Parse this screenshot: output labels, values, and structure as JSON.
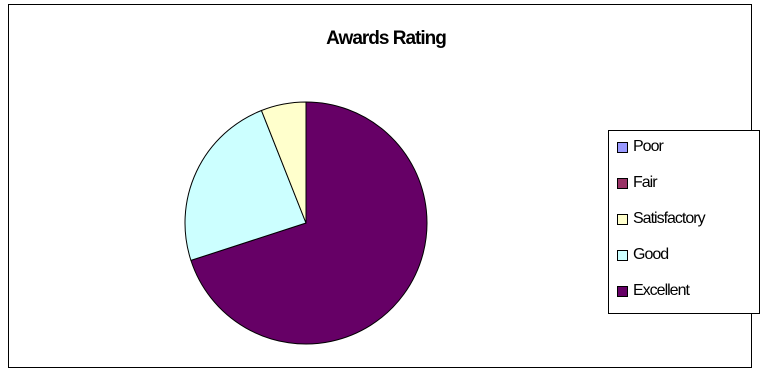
{
  "chart_data": {
    "type": "pie",
    "title": "Awards Rating",
    "categories": [
      "Poor",
      "Fair",
      "Satisfactory",
      "Good",
      "Excellent"
    ],
    "values": [
      0,
      0,
      6,
      24,
      70
    ],
    "colors": [
      "#9999ff",
      "#993366",
      "#ffffcc",
      "#ccffff",
      "#660066"
    ],
    "legend_position": "right"
  }
}
